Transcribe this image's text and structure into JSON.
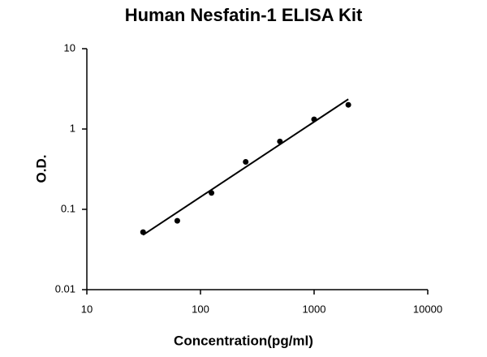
{
  "chart_data": {
    "type": "scatter",
    "title": "Human Nesfatin-1 ELISA Kit",
    "x_label": "Concentration(pg/ml)",
    "y_label": "O.D.",
    "log_x": true,
    "log_y": true,
    "grid": false,
    "color": "#000000",
    "x": [
      31.25,
      62.5,
      125,
      250,
      500,
      1000,
      2000
    ],
    "values": [
      0.052,
      0.072,
      0.16,
      0.39,
      0.7,
      1.32,
      2.0
    ],
    "fit": {
      "x": [
        31.25,
        2000
      ],
      "values": [
        0.048,
        2.35
      ]
    },
    "xlim": [
      10,
      10000
    ],
    "xticks": [
      10,
      100,
      1000,
      10000
    ],
    "ylim": [
      0.01,
      10
    ],
    "yticks": [
      0.01,
      0.1,
      1,
      10
    ]
  }
}
